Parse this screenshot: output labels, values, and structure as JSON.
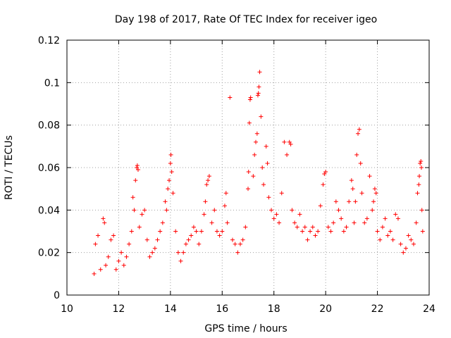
{
  "chart_data": {
    "type": "scatter",
    "title": "Day 198 of 2017, Rate Of TEC Index for receiver igeo",
    "xlabel": "GPS time / hours",
    "ylabel": "ROTI / TECUs",
    "xlim": [
      10,
      24
    ],
    "ylim": [
      0,
      0.12
    ],
    "x_ticks": [
      10,
      12,
      14,
      16,
      18,
      20,
      22,
      24
    ],
    "x_tick_labels": [
      "10",
      "12",
      "14",
      "16",
      "18",
      "20",
      "22",
      "24"
    ],
    "y_ticks": [
      0,
      0.02,
      0.04,
      0.06,
      0.08,
      0.1,
      0.12
    ],
    "y_tick_labels": [
      "0",
      "0.02",
      "0.04",
      "0.06",
      "0.08",
      "0.1",
      "0.12"
    ],
    "grid": true,
    "marker": "+",
    "marker_color": "#ff0000",
    "series": [
      {
        "name": "ROTI",
        "points": [
          [
            11.05,
            0.01
          ],
          [
            11.1,
            0.024
          ],
          [
            11.2,
            0.028
          ],
          [
            11.3,
            0.012
          ],
          [
            11.4,
            0.036
          ],
          [
            11.45,
            0.034
          ],
          [
            11.5,
            0.014
          ],
          [
            11.6,
            0.018
          ],
          [
            11.7,
            0.026
          ],
          [
            11.8,
            0.028
          ],
          [
            11.9,
            0.012
          ],
          [
            12.0,
            0.016
          ],
          [
            12.1,
            0.02
          ],
          [
            12.2,
            0.014
          ],
          [
            12.3,
            0.018
          ],
          [
            12.4,
            0.024
          ],
          [
            12.5,
            0.03
          ],
          [
            12.55,
            0.046
          ],
          [
            12.6,
            0.04
          ],
          [
            12.65,
            0.054
          ],
          [
            12.7,
            0.06
          ],
          [
            12.72,
            0.061
          ],
          [
            12.75,
            0.059
          ],
          [
            12.8,
            0.032
          ],
          [
            12.9,
            0.038
          ],
          [
            13.0,
            0.04
          ],
          [
            13.1,
            0.026
          ],
          [
            13.2,
            0.018
          ],
          [
            13.3,
            0.02
          ],
          [
            13.4,
            0.022
          ],
          [
            13.5,
            0.026
          ],
          [
            13.6,
            0.03
          ],
          [
            13.7,
            0.034
          ],
          [
            13.8,
            0.044
          ],
          [
            13.85,
            0.04
          ],
          [
            13.9,
            0.05
          ],
          [
            13.95,
            0.054
          ],
          [
            14.0,
            0.062
          ],
          [
            14.02,
            0.066
          ],
          [
            14.05,
            0.058
          ],
          [
            14.1,
            0.048
          ],
          [
            14.2,
            0.03
          ],
          [
            14.3,
            0.02
          ],
          [
            14.4,
            0.016
          ],
          [
            14.5,
            0.02
          ],
          [
            14.6,
            0.024
          ],
          [
            14.7,
            0.026
          ],
          [
            14.8,
            0.028
          ],
          [
            14.9,
            0.032
          ],
          [
            15.0,
            0.03
          ],
          [
            15.1,
            0.024
          ],
          [
            15.2,
            0.03
          ],
          [
            15.3,
            0.038
          ],
          [
            15.35,
            0.044
          ],
          [
            15.4,
            0.052
          ],
          [
            15.45,
            0.054
          ],
          [
            15.5,
            0.056
          ],
          [
            15.6,
            0.034
          ],
          [
            15.7,
            0.04
          ],
          [
            15.8,
            0.03
          ],
          [
            15.9,
            0.028
          ],
          [
            16.0,
            0.03
          ],
          [
            16.1,
            0.042
          ],
          [
            16.15,
            0.048
          ],
          [
            16.2,
            0.034
          ],
          [
            16.3,
            0.093
          ],
          [
            16.4,
            0.026
          ],
          [
            16.5,
            0.024
          ],
          [
            16.6,
            0.02
          ],
          [
            16.7,
            0.024
          ],
          [
            16.8,
            0.026
          ],
          [
            16.9,
            0.032
          ],
          [
            17.0,
            0.05
          ],
          [
            17.02,
            0.058
          ],
          [
            17.05,
            0.081
          ],
          [
            17.08,
            0.092
          ],
          [
            17.1,
            0.093
          ],
          [
            17.2,
            0.056
          ],
          [
            17.25,
            0.066
          ],
          [
            17.3,
            0.072
          ],
          [
            17.35,
            0.076
          ],
          [
            17.38,
            0.094
          ],
          [
            17.4,
            0.095
          ],
          [
            17.42,
            0.098
          ],
          [
            17.45,
            0.105
          ],
          [
            17.5,
            0.084
          ],
          [
            17.55,
            0.06
          ],
          [
            17.6,
            0.052
          ],
          [
            17.7,
            0.07
          ],
          [
            17.75,
            0.062
          ],
          [
            17.8,
            0.046
          ],
          [
            17.9,
            0.04
          ],
          [
            18.0,
            0.036
          ],
          [
            18.1,
            0.038
          ],
          [
            18.2,
            0.034
          ],
          [
            18.3,
            0.048
          ],
          [
            18.4,
            0.072
          ],
          [
            18.5,
            0.066
          ],
          [
            18.6,
            0.072
          ],
          [
            18.65,
            0.071
          ],
          [
            18.7,
            0.04
          ],
          [
            18.8,
            0.034
          ],
          [
            18.9,
            0.032
          ],
          [
            19.0,
            0.038
          ],
          [
            19.1,
            0.03
          ],
          [
            19.2,
            0.032
          ],
          [
            19.3,
            0.026
          ],
          [
            19.4,
            0.03
          ],
          [
            19.5,
            0.032
          ],
          [
            19.6,
            0.028
          ],
          [
            19.7,
            0.03
          ],
          [
            19.8,
            0.042
          ],
          [
            19.9,
            0.052
          ],
          [
            19.95,
            0.057
          ],
          [
            20.0,
            0.058
          ],
          [
            20.1,
            0.032
          ],
          [
            20.2,
            0.03
          ],
          [
            20.3,
            0.034
          ],
          [
            20.4,
            0.044
          ],
          [
            20.5,
            0.04
          ],
          [
            20.6,
            0.036
          ],
          [
            20.7,
            0.03
          ],
          [
            20.8,
            0.032
          ],
          [
            20.9,
            0.044
          ],
          [
            21.0,
            0.054
          ],
          [
            21.05,
            0.05
          ],
          [
            21.1,
            0.034
          ],
          [
            21.15,
            0.044
          ],
          [
            21.2,
            0.066
          ],
          [
            21.25,
            0.076
          ],
          [
            21.3,
            0.078
          ],
          [
            21.35,
            0.062
          ],
          [
            21.4,
            0.048
          ],
          [
            21.5,
            0.034
          ],
          [
            21.6,
            0.036
          ],
          [
            21.7,
            0.056
          ],
          [
            21.8,
            0.04
          ],
          [
            21.85,
            0.044
          ],
          [
            21.9,
            0.05
          ],
          [
            21.95,
            0.048
          ],
          [
            22.0,
            0.03
          ],
          [
            22.1,
            0.026
          ],
          [
            22.2,
            0.032
          ],
          [
            22.3,
            0.036
          ],
          [
            22.4,
            0.028
          ],
          [
            22.5,
            0.03
          ],
          [
            22.6,
            0.026
          ],
          [
            22.7,
            0.038
          ],
          [
            22.8,
            0.036
          ],
          [
            22.9,
            0.024
          ],
          [
            23.0,
            0.02
          ],
          [
            23.1,
            0.022
          ],
          [
            23.2,
            0.028
          ],
          [
            23.3,
            0.026
          ],
          [
            23.4,
            0.024
          ],
          [
            23.5,
            0.034
          ],
          [
            23.55,
            0.048
          ],
          [
            23.6,
            0.052
          ],
          [
            23.62,
            0.056
          ],
          [
            23.65,
            0.062
          ],
          [
            23.68,
            0.063
          ],
          [
            23.7,
            0.06
          ],
          [
            23.72,
            0.04
          ],
          [
            23.75,
            0.03
          ]
        ]
      }
    ]
  }
}
